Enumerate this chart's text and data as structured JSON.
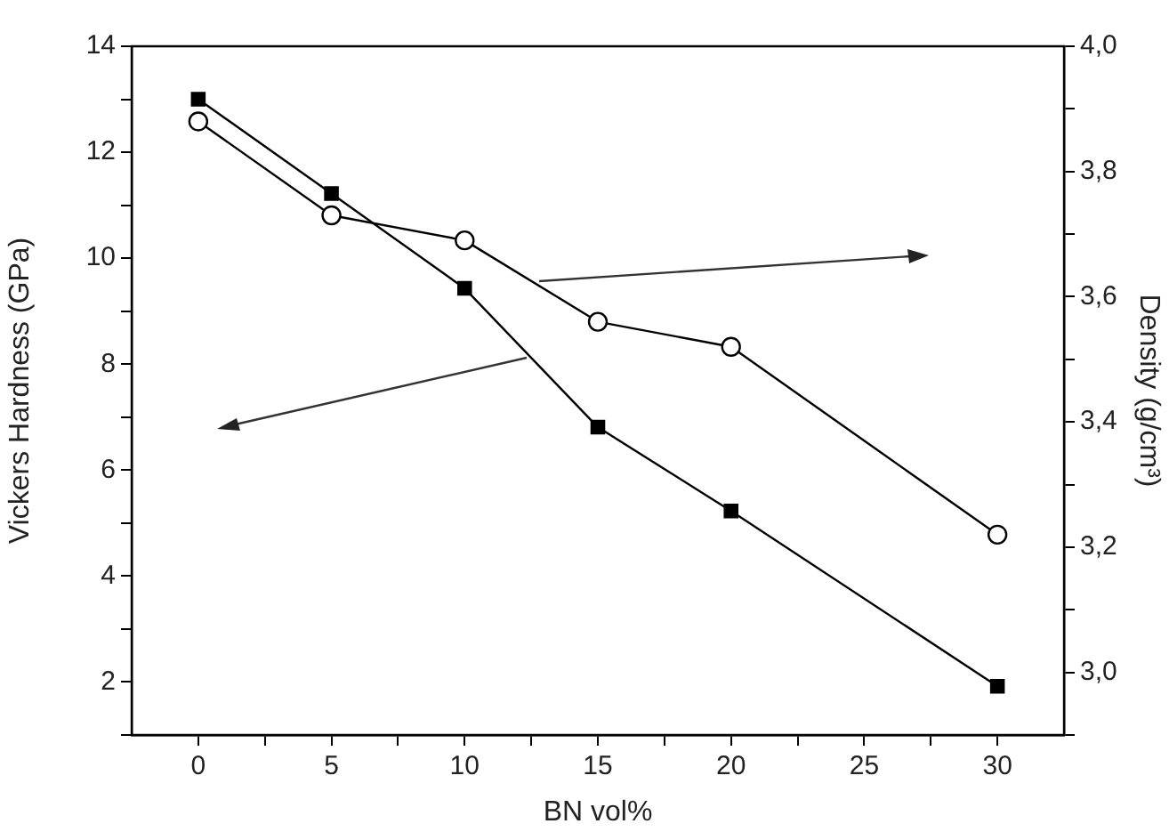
{
  "chart_data": {
    "type": "line",
    "xlabel": "BN vol%",
    "ylabel": "Vickers Hardness (GPa)",
    "y2label": "Density (g/cm³)",
    "x": [
      0,
      5,
      10,
      15,
      20,
      30
    ],
    "series": [
      {
        "color": "#000000",
        "marker": "square",
        "values": [
          13.0,
          11.22,
          9.43,
          6.81,
          5.23,
          1.92
        ]
      },
      {
        "color": "#000000",
        "marker": "circle",
        "axis": "y2",
        "values": [
          3.88,
          3.73,
          3.69,
          3.56,
          3.52,
          3.22
        ]
      }
    ],
    "xlim": [
      -2.5,
      32.5
    ],
    "xticks": [
      0,
      {
        "value": 2.5,
        "label": null
      },
      5,
      {
        "value": 7.5,
        "label": null
      },
      10,
      {
        "value": 12.5,
        "label": null
      },
      15,
      {
        "value": 17.5,
        "label": null
      },
      20,
      {
        "value": 22.5,
        "label": null
      },
      25,
      {
        "value": 27.5,
        "label": null
      },
      30
    ],
    "ylim": [
      1,
      14
    ],
    "yticks": [
      {
        "value": 1,
        "label": null
      },
      2,
      {
        "value": 3,
        "label": null
      },
      4,
      {
        "value": 5,
        "label": null
      },
      6,
      {
        "value": 7,
        "label": null
      },
      8,
      {
        "value": 9,
        "label": null
      },
      10,
      {
        "value": 11,
        "label": null
      },
      12,
      {
        "value": 13,
        "label": null
      },
      14
    ],
    "y2lim": [
      2.9,
      4.0
    ],
    "y2ticks": [
      {
        "value": 2.9,
        "label": null
      },
      {
        "value": 3.0,
        "label": "3,0"
      },
      {
        "value": 3.1,
        "label": null
      },
      {
        "value": 3.2,
        "label": "3,2"
      },
      {
        "value": 3.3,
        "label": null
      },
      {
        "value": 3.4,
        "label": "3,4"
      },
      {
        "value": 3.5,
        "label": null
      },
      {
        "value": 3.6,
        "label": "3,6"
      },
      {
        "value": 3.7,
        "label": null
      },
      {
        "value": 3.8,
        "label": "3,8"
      },
      {
        "value": 3.9,
        "label": null
      },
      {
        "value": 4.0,
        "label": "4,0"
      }
    ],
    "grid": false,
    "legend": false,
    "line_style": "solid"
  }
}
